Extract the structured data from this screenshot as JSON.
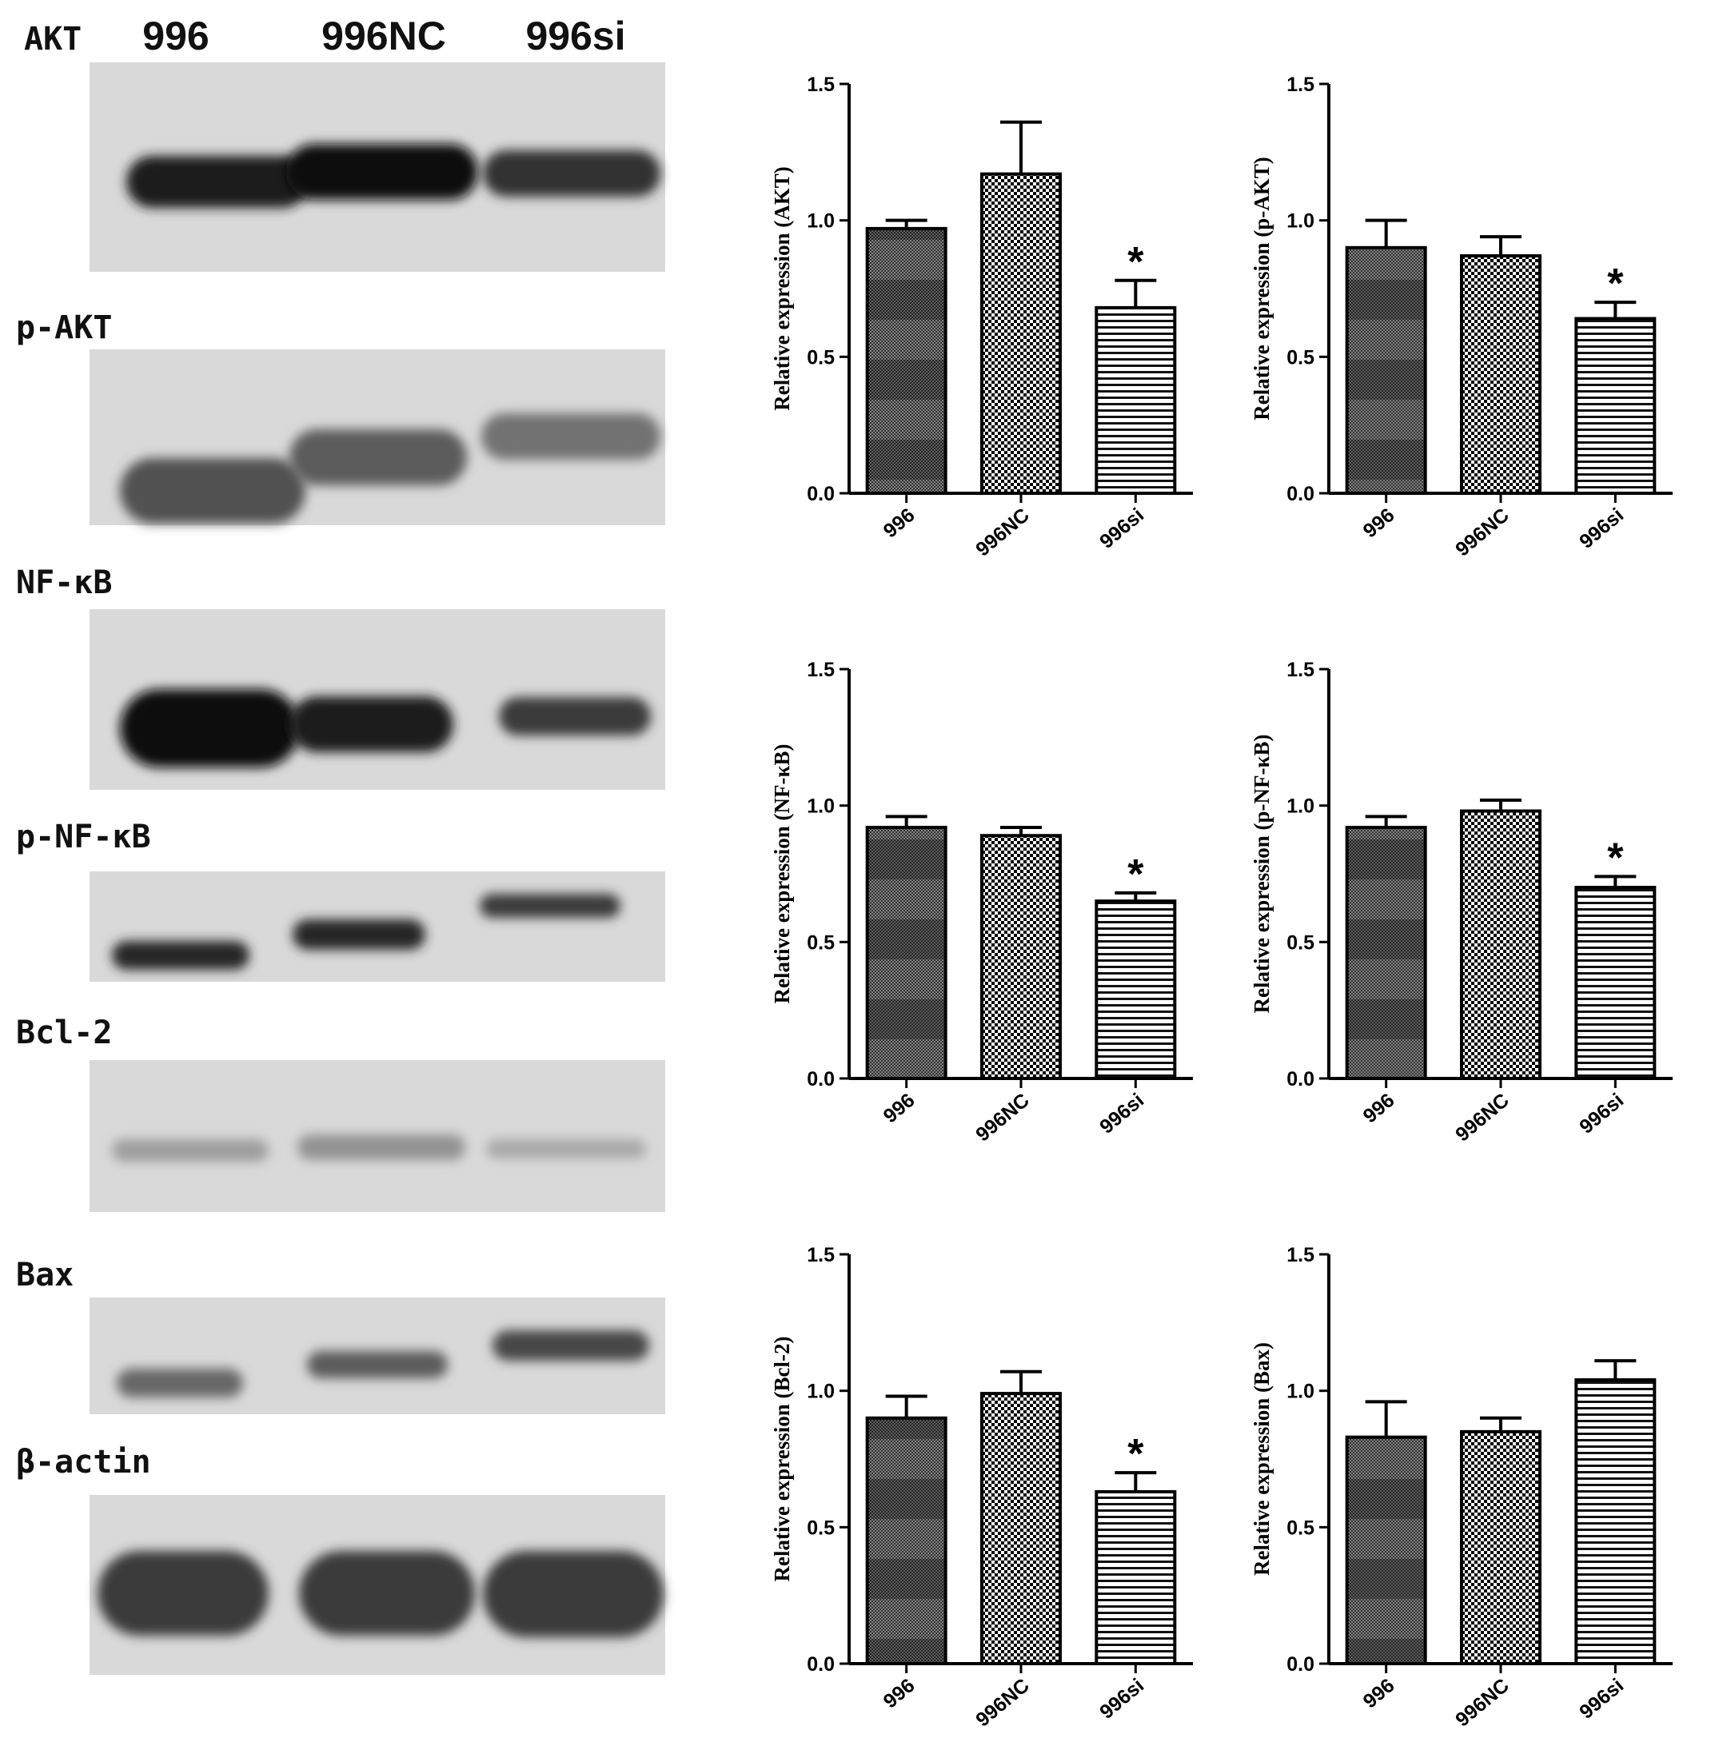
{
  "blot": {
    "lanes": [
      "996",
      "996NC",
      "996si"
    ],
    "rows": [
      {
        "label": "AKT",
        "bands": [
          0.95,
          1.0,
          0.85
        ]
      },
      {
        "label": "p-AKT",
        "bands": [
          0.7,
          0.65,
          0.55
        ]
      },
      {
        "label": "NF-κB",
        "bands": [
          1.0,
          0.95,
          0.8
        ]
      },
      {
        "label": "p-NF-κB",
        "bands": [
          0.9,
          0.9,
          0.8
        ]
      },
      {
        "label": "Bcl-2",
        "bands": [
          0.35,
          0.4,
          0.3
        ]
      },
      {
        "label": "Bax",
        "bands": [
          0.6,
          0.65,
          0.75
        ]
      },
      {
        "label": "β-actin",
        "bands": [
          0.8,
          0.8,
          0.8
        ]
      }
    ]
  },
  "chart_data": [
    {
      "type": "bar",
      "ylabel": "Relative expression (AKT)",
      "categories": [
        "996",
        "996NC",
        "996si"
      ],
      "values": [
        0.97,
        1.17,
        0.68
      ],
      "errors": [
        0.03,
        0.19,
        0.1
      ],
      "significance": [
        "",
        "",
        "*"
      ],
      "ylim": [
        0,
        1.5
      ],
      "yticks": [
        "0.0",
        "0.5",
        "1.0",
        "1.5"
      ]
    },
    {
      "type": "bar",
      "ylabel": "Relative expression (p-AKT)",
      "categories": [
        "996",
        "996NC",
        "996si"
      ],
      "values": [
        0.9,
        0.87,
        0.64
      ],
      "errors": [
        0.1,
        0.07,
        0.06
      ],
      "significance": [
        "",
        "",
        "*"
      ],
      "ylim": [
        0,
        1.5
      ],
      "yticks": [
        "0.0",
        "0.5",
        "1.0",
        "1.5"
      ]
    },
    {
      "type": "bar",
      "ylabel": "Relative expression (NF-κB)",
      "categories": [
        "996",
        "996NC",
        "996si"
      ],
      "values": [
        0.92,
        0.89,
        0.65
      ],
      "errors": [
        0.04,
        0.03,
        0.03
      ],
      "significance": [
        "",
        "",
        "*"
      ],
      "ylim": [
        0,
        1.5
      ],
      "yticks": [
        "0.0",
        "0.5",
        "1.0",
        "1.5"
      ]
    },
    {
      "type": "bar",
      "ylabel": "Relative expression (p-NF-κB)",
      "categories": [
        "996",
        "996NC",
        "996si"
      ],
      "values": [
        0.92,
        0.98,
        0.7
      ],
      "errors": [
        0.04,
        0.04,
        0.04
      ],
      "significance": [
        "",
        "",
        "*"
      ],
      "ylim": [
        0,
        1.5
      ],
      "yticks": [
        "0.0",
        "0.5",
        "1.0",
        "1.5"
      ]
    },
    {
      "type": "bar",
      "ylabel": "Relative expression (Bcl-2)",
      "categories": [
        "996",
        "996NC",
        "996si"
      ],
      "values": [
        0.9,
        0.99,
        0.63
      ],
      "errors": [
        0.08,
        0.08,
        0.07
      ],
      "significance": [
        "",
        "",
        "*"
      ],
      "ylim": [
        0,
        1.5
      ],
      "yticks": [
        "0.0",
        "0.5",
        "1.0",
        "1.5"
      ]
    },
    {
      "type": "bar",
      "ylabel": "Relative expression (Bax)",
      "categories": [
        "996",
        "996NC",
        "996si"
      ],
      "values": [
        0.83,
        0.85,
        1.04
      ],
      "errors": [
        0.13,
        0.05,
        0.07
      ],
      "significance": [
        "",
        "",
        ""
      ],
      "ylim": [
        0,
        1.5
      ],
      "yticks": [
        "0.0",
        "0.5",
        "1.0",
        "1.5"
      ]
    }
  ]
}
